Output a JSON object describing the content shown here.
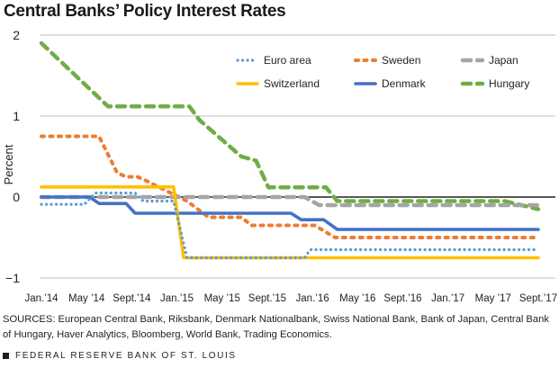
{
  "title": "Central Banks’ Policy Interest Rates",
  "sources": "SOURCES: European Central Bank, Riksbank, Denmark Nationalbank, Swiss National Bank, Bank of Japan, Central Bank of Hungary, Haver Analytics, Bloomberg, World Bank, Trading Economics.",
  "footer": "FEDERAL RESERVE BANK OF ST. LOUIS",
  "chart_data": {
    "type": "line",
    "title": "Central Banks’ Policy Interest Rates",
    "xlabel": "",
    "ylabel": "Percent",
    "ylim": [
      -1,
      2
    ],
    "yticks": [
      2,
      1,
      0,
      -1
    ],
    "ytick_labels": [
      "2",
      "1",
      "0",
      "−1"
    ],
    "xlim_months": [
      0,
      44
    ],
    "x_unit": "months since Jan. 2014",
    "xticks": [
      0,
      4,
      8,
      12,
      16,
      20,
      24,
      28,
      32,
      36,
      40,
      44
    ],
    "xtick_labels": [
      "Jan.’14",
      "May ’14",
      "Sept.’14",
      "Jan.’15",
      "May ’15",
      "Sept.’15",
      "Jan.’16",
      "May ’16",
      "Sept.’16",
      "Jan.’17",
      "May ’17",
      "Sept.’17"
    ],
    "grid": "horizontal",
    "legend_position": "top-right",
    "series": [
      {
        "name": "Euro area",
        "color": "#5b9bd5",
        "style": "dotted",
        "x": [
          0,
          3.8,
          4.8,
          8.3,
          9.0,
          11.7,
          12.9,
          23.3,
          23.8,
          44
        ],
        "y": [
          -0.09,
          -0.09,
          0.05,
          0.05,
          -0.05,
          -0.05,
          -0.75,
          -0.75,
          -0.65,
          -0.65
        ]
      },
      {
        "name": "Sweden",
        "color": "#ed7d31",
        "style": "dashed-dot",
        "x": [
          0,
          5.1,
          6.7,
          7.5,
          8.5,
          9.3,
          12.9,
          14.8,
          17.7,
          18.6,
          24.2,
          26.0,
          44
        ],
        "y": [
          0.75,
          0.75,
          0.3,
          0.25,
          0.25,
          0.2,
          -0.05,
          -0.25,
          -0.25,
          -0.35,
          -0.35,
          -0.5,
          -0.5
        ]
      },
      {
        "name": "Japan",
        "color": "#a5a5a5",
        "style": "dashed",
        "x": [
          0,
          23.3,
          24.6,
          44
        ],
        "y": [
          0,
          0,
          -0.1,
          -0.1
        ]
      },
      {
        "name": "Switzerland",
        "color": "#ffc000",
        "style": "solid",
        "x": [
          0,
          11.7,
          12.6,
          44
        ],
        "y": [
          0.125,
          0.125,
          -0.75,
          -0.75
        ]
      },
      {
        "name": "Denmark",
        "color": "#4472c4",
        "style": "solid",
        "x": [
          0,
          4.3,
          5.1,
          7.5,
          8.3,
          22.1,
          23.0,
          25.0,
          26.2,
          44
        ],
        "y": [
          0,
          0,
          -0.08,
          -0.08,
          -0.2,
          -0.2,
          -0.28,
          -0.28,
          -0.4,
          -0.4
        ]
      },
      {
        "name": "Hungary",
        "color": "#70ad47",
        "style": "dashed",
        "x": [
          0,
          5.9,
          13.1,
          14.0,
          17.7,
          19.0,
          20.1,
          25.2,
          26.2,
          41.0,
          42.5,
          44
        ],
        "y": [
          1.9,
          1.12,
          1.12,
          0.95,
          0.5,
          0.45,
          0.12,
          0.12,
          -0.05,
          -0.05,
          -0.1,
          -0.15
        ]
      }
    ]
  }
}
